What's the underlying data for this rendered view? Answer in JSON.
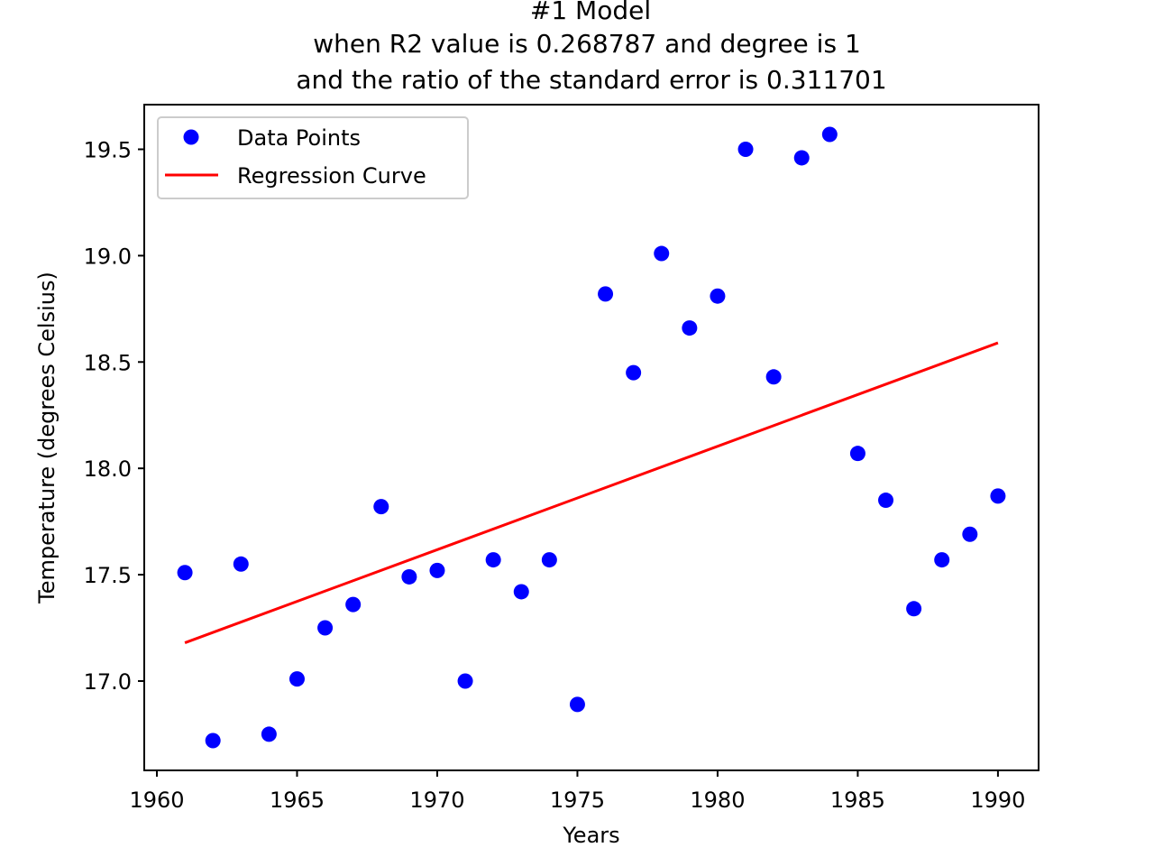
{
  "chart_data": {
    "type": "scatter",
    "title_lines": [
      "#1 Model",
      "when R2 value is 0.268787 and degree is 1",
      "and the ratio of the standard error is 0.311701"
    ],
    "xlabel": "Years",
    "ylabel": "Temperature (degrees Celsius)",
    "xlim": [
      1959.55,
      1991.45
    ],
    "ylim": [
      16.58,
      19.71
    ],
    "x_ticks": [
      1960,
      1965,
      1970,
      1975,
      1980,
      1985,
      1990
    ],
    "y_ticks": [
      17.0,
      17.5,
      18.0,
      18.5,
      19.0,
      19.5
    ],
    "x_tick_labels": [
      "1960",
      "1965",
      "1970",
      "1975",
      "1980",
      "1985",
      "1990"
    ],
    "y_tick_labels": [
      "17.0",
      "17.5",
      "18.0",
      "18.5",
      "19.0",
      "19.5"
    ],
    "grid": false,
    "legend_position": "upper-left",
    "series": [
      {
        "name": "Data Points",
        "kind": "scatter",
        "color": "#0000ff",
        "x": [
          1961,
          1962,
          1963,
          1964,
          1965,
          1966,
          1967,
          1968,
          1969,
          1970,
          1971,
          1972,
          1973,
          1974,
          1975,
          1976,
          1977,
          1978,
          1979,
          1980,
          1981,
          1982,
          1983,
          1984,
          1985,
          1986,
          1987,
          1988,
          1989,
          1990
        ],
        "y": [
          17.51,
          16.72,
          17.55,
          16.75,
          17.01,
          17.25,
          17.36,
          17.82,
          17.49,
          17.52,
          17.0,
          17.57,
          17.42,
          17.57,
          16.89,
          18.82,
          18.45,
          19.01,
          18.66,
          18.81,
          19.5,
          18.43,
          19.46,
          19.57,
          18.07,
          17.85,
          17.34,
          17.57,
          17.69,
          17.87
        ]
      },
      {
        "name": "Regression Curve",
        "kind": "line",
        "color": "#ff0000",
        "x": [
          1961,
          1990
        ],
        "y": [
          17.18,
          18.59
        ]
      }
    ]
  }
}
